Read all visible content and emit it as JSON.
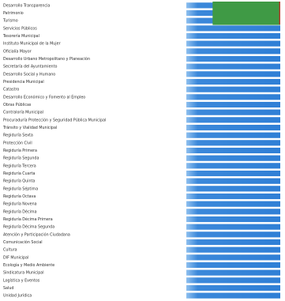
{
  "chart_data": {
    "type": "bar",
    "orientation": "horizontal",
    "categories": [
      "Desarrollo Transparencia",
      "Patrimonio",
      "Turismo",
      "Servicios Públicos",
      "Tesorería Municipal",
      "Instituto Municipal de la Mujer",
      "Oficialía Mayor",
      "Desarrollo Urbano Metropolitano y Planeación",
      "Secretaría del Ayuntamiento",
      "Desarrollo Social y Humano",
      "Presidencia Municipal",
      "Catastro",
      "Desarrollo Económico y Fomento al Empleo",
      "Obras Públicas",
      "Contraloría Municipal",
      "Procuraduría Protección y Seguridad Pública Municipal",
      "Tránsito y Vialidad Municipal",
      "Regiduría Sexta",
      "Protección Civil",
      "Regiduría Primera",
      "Regiduría Segunda",
      "Regiduría Tercera",
      "Regiduría Cuarta",
      "Regiduría Quinta",
      "Regiduría Séptima",
      "Regiduría Octava",
      "Regiduría Novena",
      "Regiduría Décima",
      "Regiduría Décima Primera",
      "Regiduría Décima Segunda",
      "Atención y Participación Ciudadana",
      "Comunicación Social",
      "Cultura",
      "DIF Municipal",
      "Ecología y Medio Ambiente",
      "Sindicatura Municipal",
      "Logística y Eventos",
      "Salud",
      "Unidad Jurídica"
    ],
    "series": [
      {
        "values": [
          1,
          1,
          1,
          1,
          1,
          1,
          1,
          1,
          1,
          1,
          1,
          1,
          1,
          1,
          1,
          1,
          1,
          1,
          1,
          1,
          1,
          1,
          1,
          1,
          1,
          1,
          1,
          1,
          1,
          1,
          1,
          1,
          1,
          1,
          1,
          1,
          1,
          1,
          1
        ]
      },
      {
        "values": [
          0.72,
          0.72,
          0.72,
          0,
          0,
          0,
          0,
          0,
          0,
          0,
          0,
          0,
          0,
          0,
          0,
          0,
          0,
          0,
          0,
          0,
          0,
          0,
          0,
          0,
          0,
          0,
          0,
          0,
          0,
          0,
          0,
          0,
          0,
          0,
          0,
          0,
          0,
          0,
          0
        ]
      }
    ],
    "colors": {
      "bar": "#2f7fd6",
      "bar_highlight": "#8fc0ef",
      "overlay": "#3f9a45",
      "overlay_edge": "#b23a2c"
    },
    "xlim": [
      0,
      1
    ],
    "grid": false,
    "title": "",
    "xlabel": "",
    "ylabel": ""
  }
}
